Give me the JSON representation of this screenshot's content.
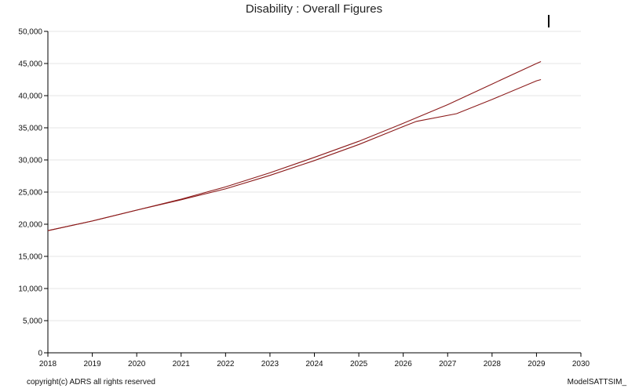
{
  "chart_data": {
    "type": "line",
    "title": "Disability : Overall Figures",
    "xlabel": "",
    "ylabel": "",
    "xlim": [
      2018,
      2030
    ],
    "ylim": [
      0,
      50000
    ],
    "x_ticks": [
      2018,
      2019,
      2020,
      2021,
      2022,
      2023,
      2024,
      2025,
      2026,
      2027,
      2028,
      2029,
      2030
    ],
    "x_tick_labels": [
      "2018",
      "2019",
      "2020",
      "2021",
      "2022",
      "2023",
      "2024",
      "2025",
      "2026",
      "2027",
      "2028",
      "2029",
      "2030"
    ],
    "y_ticks": [
      0,
      5000,
      10000,
      15000,
      20000,
      25000,
      30000,
      35000,
      40000,
      45000,
      50000
    ],
    "y_tick_labels": [
      "0",
      "5,000",
      "10,000",
      "15,000",
      "20,000",
      "25,000",
      "30,000",
      "35,000",
      "40,000",
      "45,000",
      "50,000"
    ],
    "grid": true,
    "legend": "none",
    "series": [
      {
        "color": "#8b1a1a",
        "x": [
          2018,
          2019,
          2020,
          2021,
          2022,
          2023,
          2024,
          2025,
          2026,
          2027,
          2028,
          2029,
          2029.1
        ],
        "values": [
          19000,
          20500,
          22200,
          23900,
          25800,
          28000,
          30400,
          32900,
          35700,
          38600,
          41800,
          45000,
          45300
        ]
      },
      {
        "color": "#8b1a1a",
        "x": [
          2018,
          2019,
          2020,
          2021,
          2022,
          2023,
          2024,
          2025,
          2026,
          2026.3,
          2027.2,
          2028,
          2029,
          2029.1
        ],
        "values": [
          19000,
          20500,
          22200,
          23800,
          25500,
          27600,
          29900,
          32400,
          35200,
          36000,
          37200,
          39400,
          42300,
          42500
        ]
      }
    ]
  },
  "footer": {
    "copyright": "copyright(c) ADRS all rights reserved",
    "model": "ModelSATTSIM_"
  }
}
